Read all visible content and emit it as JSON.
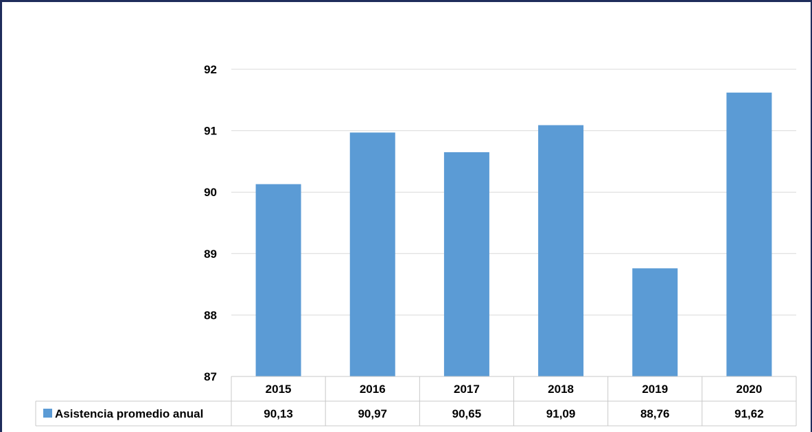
{
  "chart_data": {
    "type": "bar",
    "categories": [
      "2015",
      "2016",
      "2017",
      "2018",
      "2019",
      "2020"
    ],
    "series": [
      {
        "name": "Asistencia promedio anual",
        "values": [
          90.13,
          90.97,
          90.65,
          91.09,
          88.76,
          91.62
        ],
        "value_labels": [
          "90,13",
          "90,97",
          "90,65",
          "91,09",
          "88,76",
          "91,62"
        ],
        "color": "#5b9bd5"
      }
    ],
    "y_ticks": [
      "87",
      "88",
      "89",
      "90",
      "91",
      "92"
    ],
    "ylim": [
      87,
      92
    ],
    "grid": true,
    "legend": "data-table",
    "title": "",
    "xlabel": "",
    "ylabel": ""
  }
}
